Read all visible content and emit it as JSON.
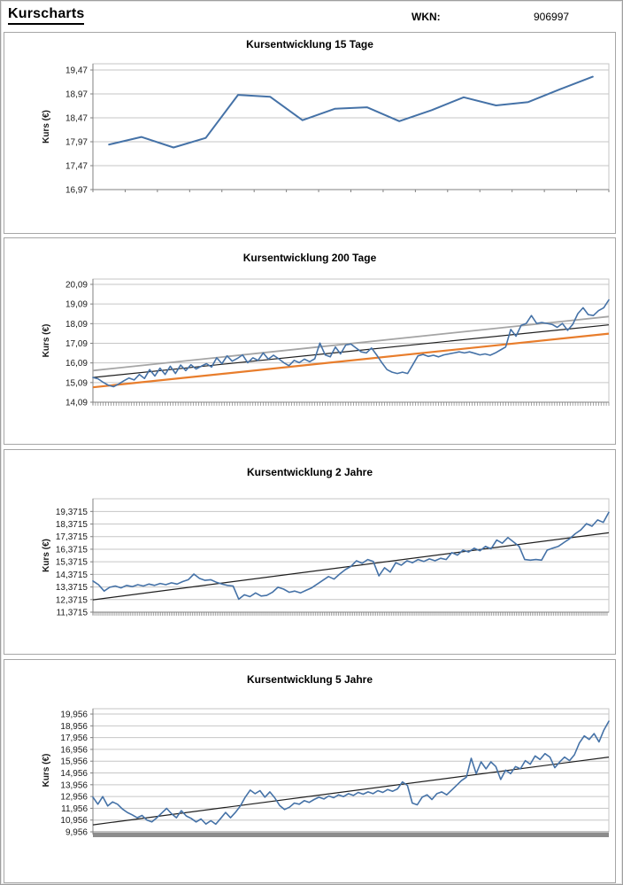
{
  "header": {
    "title": "Kurscharts",
    "wkn_label": "WKN:",
    "wkn_value": "906997"
  },
  "colors": {
    "price_blue": "#4572a7",
    "trend_gray": "#a5a5a5",
    "trend_black": "#1f1f1f",
    "trend_orange": "#e87d2c",
    "grid": "#c6c6c6",
    "axis": "#808080",
    "band": "#8c8c8c"
  },
  "chart_data": [
    {
      "type": "line",
      "title": "Kursentwicklung 15 Tage",
      "ylabel": "Kurs (€)",
      "ylim": [
        16.97,
        19.6
      ],
      "ytick_labels": [
        "19,47",
        "18,97",
        "18,47",
        "17,97",
        "17,47",
        "16,97"
      ],
      "ytick_values": [
        19.47,
        18.97,
        18.47,
        17.97,
        17.47,
        16.97
      ],
      "x_tick_count": 16,
      "grid": true,
      "legend": "none",
      "series": [
        {
          "name": "Kurs",
          "color": "#4572a7",
          "width": 2,
          "align": "center",
          "values": [
            17.91,
            18.07,
            17.85,
            18.05,
            18.95,
            18.91,
            18.42,
            18.66,
            18.69,
            18.4,
            18.63,
            18.9,
            18.73,
            18.8,
            19.07,
            19.33
          ]
        }
      ]
    },
    {
      "type": "line",
      "title": "Kursentwicklung 200 Tage",
      "ylabel": "Kurs (€)",
      "ylim": [
        14.09,
        20.36
      ],
      "ytick_labels": [
        "20,09",
        "19,09",
        "18,09",
        "17,09",
        "16,09",
        "15,09",
        "14,09"
      ],
      "ytick_values": [
        20.09,
        19.09,
        18.09,
        17.09,
        16.09,
        15.09,
        14.09
      ],
      "x_tick_count": 200,
      "grid": true,
      "legend": "none",
      "series": [
        {
          "name": "oberer Trendkanal",
          "color": "#a5a5a5",
          "width": 1.8,
          "trend": [
            15.7,
            18.45
          ]
        },
        {
          "name": "Trendlinie",
          "color": "#1f1f1f",
          "width": 1.2,
          "trend": [
            15.35,
            18.03
          ]
        },
        {
          "name": "unterer Trendkanal",
          "color": "#e87d2c",
          "width": 2.2,
          "trend": [
            14.85,
            17.58
          ]
        },
        {
          "name": "Kurs",
          "color": "#4572a7",
          "width": 1.6,
          "align": "span",
          "values": [
            15.35,
            15.28,
            15.1,
            14.95,
            14.88,
            15.02,
            15.18,
            15.32,
            15.22,
            15.5,
            15.3,
            15.75,
            15.42,
            15.82,
            15.5,
            15.92,
            15.55,
            15.98,
            15.7,
            16.0,
            15.78,
            15.92,
            16.05,
            15.88,
            16.35,
            16.05,
            16.45,
            16.18,
            16.32,
            16.5,
            16.1,
            16.35,
            16.22,
            16.6,
            16.28,
            16.48,
            16.3,
            16.1,
            15.95,
            16.22,
            16.1,
            16.28,
            16.15,
            16.3,
            17.1,
            16.5,
            16.4,
            16.9,
            16.55,
            17.0,
            17.05,
            16.85,
            16.65,
            16.6,
            16.85,
            16.5,
            16.1,
            15.75,
            15.62,
            15.55,
            15.62,
            15.55,
            16.0,
            16.45,
            16.52,
            16.42,
            16.48,
            16.4,
            16.5,
            16.55,
            16.6,
            16.65,
            16.6,
            16.65,
            16.58,
            16.5,
            16.55,
            16.48,
            16.6,
            16.75,
            16.9,
            17.8,
            17.45,
            18.0,
            18.1,
            18.5,
            18.1,
            18.15,
            18.1,
            18.05,
            17.9,
            18.1,
            17.75,
            18.05,
            18.6,
            18.9,
            18.55,
            18.5,
            18.75,
            18.9,
            19.3
          ]
        }
      ]
    },
    {
      "type": "line",
      "title": "Kursentwicklung 2 Jahre",
      "ylabel": "Kurs (€)",
      "ylim": [
        11.3715,
        20.38
      ],
      "ytick_labels": [
        "19,3715",
        "18,3715",
        "17,3715",
        "16,3715",
        "15,3715",
        "14,3715",
        "13,3715",
        "12,3715",
        "11,3715"
      ],
      "ytick_values": [
        19.3715,
        18.3715,
        17.3715,
        16.3715,
        15.3715,
        14.3715,
        13.3715,
        12.3715,
        11.3715
      ],
      "x_tick_count": 290,
      "grid": true,
      "legend": "none",
      "series": [
        {
          "name": "Trendlinie",
          "color": "#1f1f1f",
          "width": 1.2,
          "trend": [
            12.35,
            17.68
          ]
        },
        {
          "name": "Kurs",
          "color": "#4572a7",
          "width": 1.6,
          "align": "span",
          "values": [
            13.85,
            13.55,
            13.05,
            13.35,
            13.45,
            13.3,
            13.5,
            13.4,
            13.55,
            13.45,
            13.6,
            13.5,
            13.65,
            13.55,
            13.7,
            13.6,
            13.8,
            13.95,
            14.4,
            14.05,
            13.9,
            13.95,
            13.75,
            13.6,
            13.5,
            13.45,
            12.4,
            12.75,
            12.6,
            12.9,
            12.65,
            12.7,
            12.95,
            13.35,
            13.2,
            12.95,
            13.05,
            12.9,
            13.1,
            13.3,
            13.6,
            13.9,
            14.2,
            14.0,
            14.4,
            14.75,
            15.0,
            15.45,
            15.25,
            15.55,
            15.4,
            14.25,
            14.9,
            14.55,
            15.3,
            15.1,
            15.45,
            15.3,
            15.55,
            15.4,
            15.6,
            15.45,
            15.65,
            15.55,
            16.1,
            15.9,
            16.3,
            16.15,
            16.45,
            16.25,
            16.6,
            16.4,
            17.1,
            16.85,
            17.3,
            16.95,
            16.6,
            15.55,
            15.5,
            15.55,
            15.5,
            16.3,
            16.45,
            16.6,
            16.9,
            17.2,
            17.6,
            17.9,
            18.4,
            18.2,
            18.7,
            18.5,
            19.3
          ]
        }
      ]
    },
    {
      "type": "line",
      "title": "Kursentwicklung 5 Jahre",
      "ylabel": "Kurs (€)",
      "ylim": [
        9.956,
        20.41
      ],
      "ytick_labels": [
        "19,956",
        "18,956",
        "17,956",
        "16,956",
        "15,956",
        "14,956",
        "13,956",
        "12,956",
        "11,956",
        "10,956",
        "9,956"
      ],
      "ytick_values": [
        19.956,
        18.956,
        17.956,
        16.956,
        15.956,
        14.956,
        13.956,
        12.956,
        11.956,
        10.956,
        9.956
      ],
      "x_tick_count": 0,
      "grid": true,
      "legend": "none",
      "series": [
        {
          "name": "Trendlinie",
          "color": "#1f1f1f",
          "width": 1.2,
          "trend": [
            10.55,
            16.3
          ]
        },
        {
          "name": "Kurs",
          "color": "#4572a7",
          "width": 1.6,
          "align": "span",
          "values": [
            12.9,
            12.3,
            12.95,
            12.15,
            12.5,
            12.3,
            11.9,
            11.6,
            11.4,
            11.15,
            11.35,
            10.95,
            10.8,
            11.15,
            11.55,
            11.95,
            11.5,
            11.15,
            11.75,
            11.3,
            11.1,
            10.8,
            11.05,
            10.62,
            10.9,
            10.6,
            11.1,
            11.6,
            11.15,
            11.6,
            12.15,
            12.9,
            13.5,
            13.2,
            13.45,
            12.9,
            13.35,
            12.85,
            12.2,
            11.85,
            12.05,
            12.4,
            12.3,
            12.6,
            12.45,
            12.7,
            12.9,
            12.75,
            13.0,
            12.85,
            13.1,
            12.95,
            13.2,
            13.05,
            13.3,
            13.15,
            13.35,
            13.2,
            13.45,
            13.3,
            13.55,
            13.4,
            13.6,
            14.2,
            13.9,
            12.4,
            12.25,
            12.9,
            13.1,
            12.7,
            13.2,
            13.35,
            13.1,
            13.5,
            13.9,
            14.3,
            14.6,
            16.2,
            14.9,
            15.9,
            15.3,
            15.9,
            15.5,
            14.4,
            15.2,
            14.9,
            15.5,
            15.3,
            16.0,
            15.7,
            16.4,
            16.1,
            16.6,
            16.3,
            15.4,
            15.9,
            16.3,
            16.0,
            16.5,
            17.5,
            18.1,
            17.8,
            18.3,
            17.6,
            18.6,
            19.35
          ]
        }
      ]
    }
  ]
}
